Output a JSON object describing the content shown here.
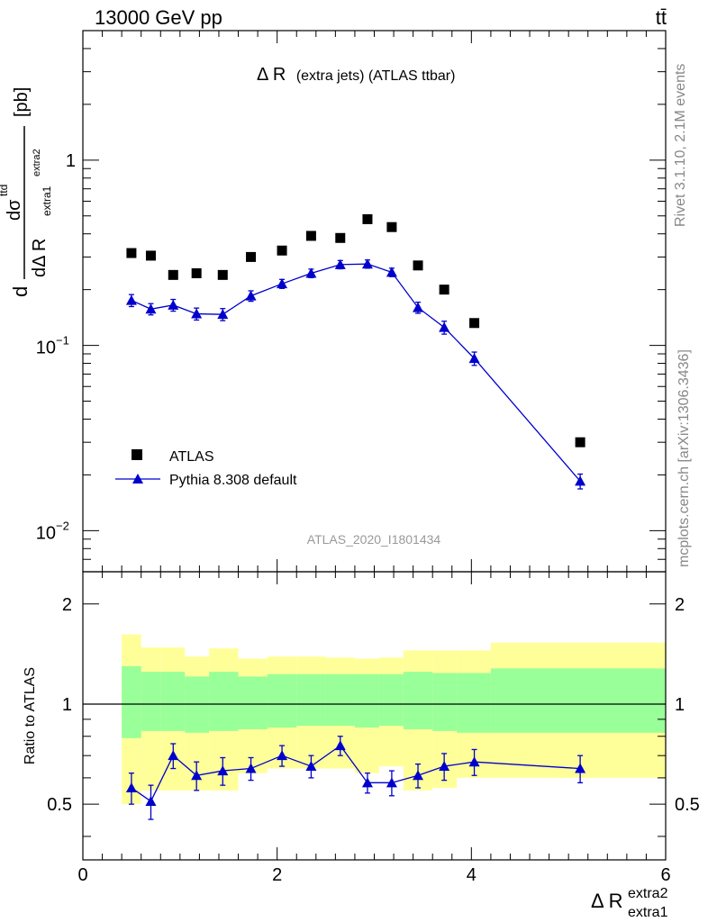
{
  "header": {
    "energy": "13000 GeV pp",
    "process": "tt̄",
    "title_main": "Δ R",
    "title_rest": "(extra jets) (ATLAS ttbar)",
    "side_right_top": "Rivet 3.1.10,  2.1M events",
    "side_right_bottom": "mcplots.cern.ch [arXiv:1306.3436]",
    "analysis_id": "ATLAS_2020_I1801434"
  },
  "legend": {
    "data_label": "ATLAS",
    "mc_label": "Pythia 8.308 default"
  },
  "axes": {
    "ylabel_prefix": "d",
    "ylabel_num": "dσ",
    "ylabel_num_sup": "ttd",
    "ylabel_den": "dΔ R",
    "ylabel_den_sub": "extra1",
    "ylabel_den_sup": "extra2",
    "ylabel_unit": "[pb]",
    "ratio_ylabel": "Ratio to ATLAS",
    "xlabel_main": "Δ R",
    "xlabel_sup": "extra2",
    "xlabel_sub": "extra1",
    "top_ticks": [
      {
        "value": 1,
        "label": "1"
      },
      {
        "value": 0.1,
        "base": "10",
        "exp": "−1"
      },
      {
        "value": 0.01,
        "base": "10",
        "exp": "−2"
      }
    ],
    "ratio_ticks": [
      "0.5",
      "1",
      "2"
    ],
    "x_ticks": [
      "0",
      "2",
      "4",
      "6"
    ]
  },
  "colors": {
    "mc": "#0000cc",
    "data": "#000000",
    "band_inner": "#99ff99",
    "band_outer": "#ffff99",
    "header_gray": "#888888"
  },
  "chart_data": {
    "type": "scatter",
    "x_range": [
      0,
      6
    ],
    "y_range_log": [
      0.006,
      5
    ],
    "y_scale": "log",
    "ratio_range_log": [
      0.34,
      2.5
    ],
    "legend_position": "bottom-left",
    "x": [
      0.5,
      0.7,
      0.93,
      1.17,
      1.44,
      1.73,
      2.05,
      2.35,
      2.65,
      2.93,
      3.18,
      3.45,
      3.72,
      4.03,
      5.12
    ],
    "series": [
      {
        "name": "ATLAS",
        "values": [
          0.315,
          0.305,
          0.24,
          0.245,
          0.24,
          0.3,
          0.325,
          0.39,
          0.38,
          0.48,
          0.435,
          0.27,
          0.2,
          0.132,
          0.03
        ]
      },
      {
        "name": "Pythia 8.308 default",
        "values": [
          0.175,
          0.157,
          0.165,
          0.148,
          0.147,
          0.185,
          0.215,
          0.245,
          0.273,
          0.275,
          0.248,
          0.16,
          0.125,
          0.085,
          0.0185
        ],
        "errors": [
          0.013,
          0.011,
          0.012,
          0.011,
          0.011,
          0.012,
          0.012,
          0.013,
          0.014,
          0.014,
          0.013,
          0.011,
          0.01,
          0.007,
          0.0017
        ]
      }
    ],
    "ratio": {
      "values": [
        0.56,
        0.51,
        0.7,
        0.61,
        0.63,
        0.64,
        0.7,
        0.65,
        0.75,
        0.58,
        0.58,
        0.61,
        0.65,
        0.67,
        0.64
      ],
      "errors": [
        0.06,
        0.06,
        0.06,
        0.06,
        0.06,
        0.05,
        0.05,
        0.05,
        0.05,
        0.04,
        0.05,
        0.05,
        0.06,
        0.06,
        0.06
      ],
      "band_edges": [
        0.4,
        0.6,
        0.8,
        1.05,
        1.3,
        1.6,
        1.9,
        2.2,
        2.5,
        2.8,
        3.05,
        3.3,
        3.6,
        3.85,
        4.2,
        6.0
      ],
      "inner_lo": [
        0.79,
        0.83,
        0.83,
        0.82,
        0.83,
        0.84,
        0.85,
        0.86,
        0.86,
        0.85,
        0.86,
        0.84,
        0.83,
        0.82,
        0.82
      ],
      "inner_hi": [
        1.3,
        1.25,
        1.25,
        1.21,
        1.25,
        1.21,
        1.23,
        1.23,
        1.23,
        1.23,
        1.23,
        1.25,
        1.24,
        1.24,
        1.28
      ],
      "outer_lo": [
        0.5,
        0.55,
        0.55,
        0.55,
        0.55,
        0.62,
        0.64,
        0.64,
        0.64,
        0.62,
        0.65,
        0.55,
        0.56,
        0.6,
        0.6
      ],
      "outer_hi": [
        1.62,
        1.48,
        1.48,
        1.39,
        1.47,
        1.37,
        1.39,
        1.39,
        1.38,
        1.37,
        1.38,
        1.45,
        1.45,
        1.45,
        1.53
      ]
    }
  }
}
